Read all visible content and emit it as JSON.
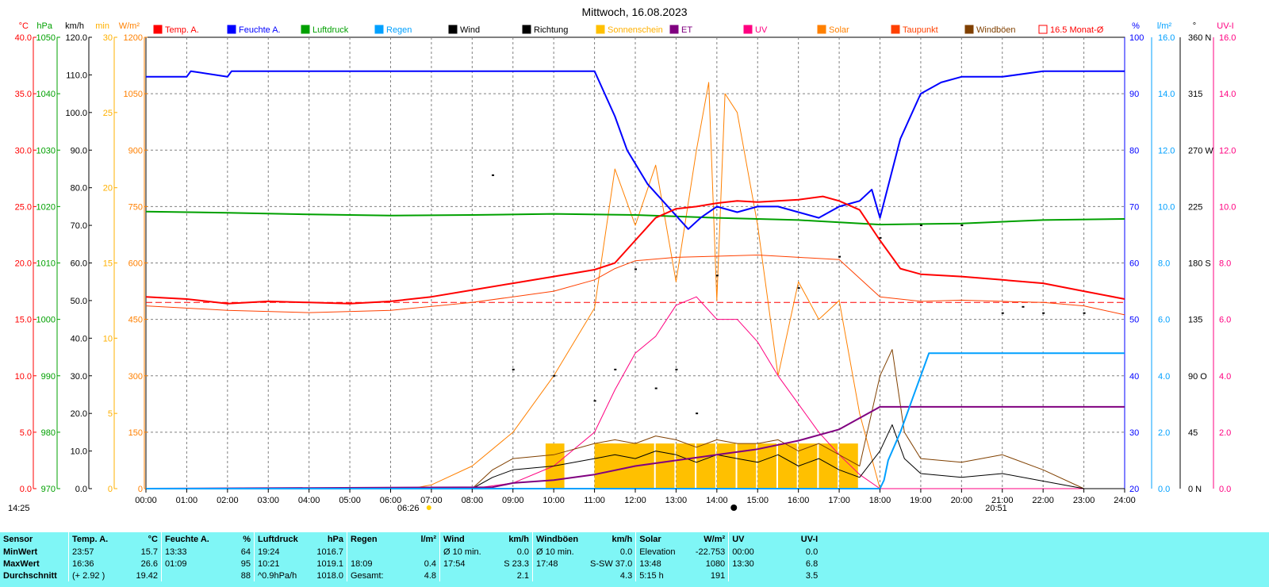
{
  "title": "Mittwoch, 16.08.2023",
  "chart_data": {
    "type": "line",
    "title": "Mittwoch, 16.08.2023",
    "x_ticks": [
      "00:00",
      "01:00",
      "02:00",
      "03:00",
      "04:00",
      "05:00",
      "06:00",
      "07:00",
      "08:00",
      "09:00",
      "10:00",
      "11:00",
      "12:00",
      "13:00",
      "14:00",
      "15:00",
      "16:00",
      "17:00",
      "18:00",
      "19:00",
      "20:00",
      "21:00",
      "22:00",
      "23:00",
      "24:00"
    ],
    "sunrise": "06:26",
    "sunset": "20:51",
    "moon_time": "14:25",
    "left_axes": [
      {
        "unit": "°C",
        "color": "#ff0000",
        "ticks": [
          "0.0",
          "5.0",
          "10.0",
          "15.0",
          "20.0",
          "25.0",
          "30.0",
          "35.0",
          "40.0"
        ]
      },
      {
        "unit": "hPa",
        "color": "#00a000",
        "ticks": [
          "970",
          "980",
          "990",
          "1000",
          "1010",
          "1020",
          "1030",
          "1040",
          "1050"
        ]
      },
      {
        "unit": "km/h",
        "color": "#000000",
        "ticks": [
          "0.0",
          "10.0",
          "20.0",
          "30.0",
          "40.0",
          "50.0",
          "60.0",
          "70.0",
          "80.0",
          "90.0",
          "100.0",
          "110.0",
          "120.0"
        ]
      },
      {
        "unit": "min",
        "color": "#ffb000",
        "ticks": [
          "0",
          "5",
          "10",
          "15",
          "20",
          "25",
          "30"
        ]
      },
      {
        "unit": "W/m²",
        "color": "#ff8000",
        "ticks": [
          "0",
          "150",
          "300",
          "450",
          "600",
          "750",
          "900",
          "1050",
          "1200"
        ]
      }
    ],
    "right_axes": [
      {
        "unit": "%",
        "color": "#0000ff",
        "ticks": [
          "20",
          "30",
          "40",
          "50",
          "60",
          "70",
          "80",
          "90",
          "100"
        ]
      },
      {
        "unit": "l/m²",
        "color": "#00a0ff",
        "ticks": [
          "0.0",
          "2.0",
          "4.0",
          "6.0",
          "8.0",
          "10.0",
          "12.0",
          "14.0",
          "16.0"
        ]
      },
      {
        "unit": "°",
        "color": "#000000",
        "ticks": [
          "0 N",
          "45",
          "90 O",
          "135",
          "180 S",
          "225",
          "270 W",
          "315",
          "360 N"
        ]
      },
      {
        "unit": "UV-I",
        "color": "#ff0080",
        "ticks": [
          "0.0",
          "2.0",
          "4.0",
          "6.0",
          "8.0",
          "10.0",
          "12.0",
          "14.0",
          "16.0"
        ]
      }
    ],
    "legend": [
      {
        "label": "Temp. A.",
        "color": "#ff0000"
      },
      {
        "label": "Feuchte A.",
        "color": "#0000ff"
      },
      {
        "label": "Luftdruck",
        "color": "#00a000"
      },
      {
        "label": "Regen",
        "color": "#00a0ff"
      },
      {
        "label": "Wind",
        "color": "#000000"
      },
      {
        "label": "Richtung",
        "color": "#000000"
      },
      {
        "label": "Sonnenschein",
        "color": "#ffc000"
      },
      {
        "label": "ET",
        "color": "#800080"
      },
      {
        "label": "UV",
        "color": "#ff0080"
      },
      {
        "label": "Solar",
        "color": "#ff8000"
      },
      {
        "label": "Taupunkt",
        "color": "#ff4000"
      },
      {
        "label": "Windböen",
        "color": "#804000"
      },
      {
        "label": "16.5 Monat-Ø",
        "color": "#ff0000"
      }
    ],
    "monthly_avg_temp": 16.5,
    "series": [
      {
        "name": "Temp. A.",
        "unit": "°C",
        "x": [
          0,
          1,
          2,
          3,
          4,
          5,
          6,
          7,
          8,
          9,
          10,
          11,
          11.5,
          12,
          12.5,
          13,
          13.5,
          14,
          14.5,
          15,
          16,
          16.6,
          17,
          17.5,
          18,
          18.5,
          19,
          20,
          21,
          22,
          23,
          24
        ],
        "values": [
          17.0,
          16.8,
          16.4,
          16.6,
          16.5,
          16.4,
          16.6,
          17.0,
          17.6,
          18.2,
          18.8,
          19.4,
          20.0,
          22.0,
          24.0,
          24.8,
          25.0,
          25.3,
          25.5,
          25.4,
          25.6,
          25.9,
          25.5,
          24.7,
          22.0,
          19.5,
          19.0,
          18.8,
          18.5,
          18.2,
          17.5,
          16.8
        ]
      },
      {
        "name": "Feuchte A.",
        "unit": "%",
        "x": [
          0,
          1,
          1.1,
          2,
          2.1,
          2.5,
          3,
          10,
          11,
          11.5,
          11.8,
          12.3,
          12.8,
          13.3,
          13.6,
          14,
          14.5,
          15,
          15.5,
          16,
          16.5,
          17,
          17.5,
          17.8,
          18,
          18.5,
          19,
          19.5,
          20,
          21,
          22,
          23,
          24
        ],
        "values": [
          93,
          93,
          94,
          93,
          94,
          94,
          94,
          94,
          94,
          86,
          80,
          74,
          70,
          66,
          68,
          70,
          69,
          70,
          70,
          69,
          68,
          70,
          71,
          73,
          68,
          82,
          90,
          92,
          93,
          93,
          94,
          94,
          94
        ]
      },
      {
        "name": "Luftdruck",
        "unit": "hPa",
        "x": [
          0,
          2,
          4,
          6,
          8,
          10,
          12,
          14,
          16,
          18,
          20,
          22,
          24
        ],
        "values": [
          1019.1,
          1018.9,
          1018.6,
          1018.4,
          1018.5,
          1018.7,
          1018.5,
          1018.0,
          1017.6,
          1016.8,
          1017.0,
          1017.6,
          1017.8
        ]
      },
      {
        "name": "Regen",
        "unit": "l/m²",
        "x": [
          0,
          18.0,
          18.1,
          18.2,
          18.5,
          18.8,
          19.0,
          19.1,
          19.2,
          24
        ],
        "values": [
          0,
          0,
          0.3,
          1.0,
          2.0,
          3.2,
          4.0,
          4.4,
          4.8,
          4.8
        ]
      },
      {
        "name": "ET",
        "unit": "l/m²",
        "x": [
          0,
          8.5,
          9,
          10,
          11,
          12,
          13,
          14,
          15,
          16,
          17,
          18,
          24
        ],
        "values": [
          0,
          0.05,
          0.2,
          0.3,
          0.5,
          0.8,
          1.0,
          1.2,
          1.4,
          1.7,
          2.1,
          2.9,
          2.9
        ]
      },
      {
        "name": "UV",
        "unit": "UV-I",
        "x": [
          0,
          8,
          9,
          10,
          11,
          11.5,
          12,
          12.5,
          13,
          13.5,
          14,
          14.5,
          15,
          15.5,
          16,
          16.5,
          17,
          17.5,
          18,
          24
        ],
        "values": [
          0,
          0,
          0.2,
          0.8,
          2.0,
          3.5,
          4.8,
          5.4,
          6.5,
          6.8,
          6.0,
          6.0,
          5.2,
          4.0,
          3.0,
          2.0,
          1.2,
          0.5,
          0,
          0
        ]
      },
      {
        "name": "Solar",
        "unit": "W/m²",
        "x": [
          0,
          6.5,
          7,
          8,
          9,
          10,
          11,
          11.5,
          12,
          12.5,
          13,
          13.5,
          13.8,
          14,
          14.2,
          14.5,
          15,
          15.5,
          16,
          16.5,
          17,
          17.5,
          18,
          19,
          24
        ],
        "values": [
          0,
          0,
          10,
          60,
          150,
          300,
          480,
          850,
          700,
          860,
          550,
          900,
          1080,
          500,
          1050,
          1000,
          700,
          300,
          550,
          450,
          500,
          200,
          0,
          0,
          0
        ]
      },
      {
        "name": "Taupunkt",
        "unit": "°C",
        "x": [
          0,
          2,
          4,
          6,
          8,
          10,
          11,
          11.5,
          12,
          13,
          14,
          15,
          16,
          17,
          18,
          19,
          20,
          21,
          22,
          23,
          24
        ],
        "values": [
          16.2,
          15.8,
          15.6,
          15.8,
          16.5,
          17.5,
          18.5,
          19.5,
          20.2,
          20.5,
          20.6,
          20.7,
          20.5,
          20.3,
          17.0,
          16.6,
          16.7,
          16.6,
          16.5,
          16.2,
          15.4
        ]
      },
      {
        "name": "Wind",
        "unit": "km/h",
        "x": [
          0,
          8,
          8.5,
          9,
          10,
          11,
          11.5,
          12,
          12.5,
          13,
          13.5,
          14,
          14.5,
          15,
          15.5,
          16,
          16.5,
          17,
          17.5,
          18,
          18.3,
          18.6,
          19,
          20,
          21,
          22,
          23,
          24
        ],
        "values": [
          0,
          0,
          3,
          5,
          6,
          8,
          9,
          8,
          10,
          9,
          7,
          9,
          8,
          7,
          9,
          6,
          8,
          5,
          3,
          10,
          17,
          8,
          4,
          3,
          4,
          2,
          0,
          0
        ]
      },
      {
        "name": "Windböen",
        "unit": "km/h",
        "x": [
          0,
          8,
          8.5,
          9,
          10,
          11,
          11.5,
          12,
          12.5,
          13,
          13.5,
          14,
          14.5,
          15,
          15.5,
          16,
          16.5,
          17,
          17.5,
          18,
          18.3,
          18.6,
          19,
          20,
          21,
          22,
          23,
          24
        ],
        "values": [
          0,
          0,
          5,
          8,
          9,
          12,
          13,
          12,
          14,
          13,
          11,
          13,
          12,
          12,
          13,
          10,
          12,
          9,
          6,
          30,
          37,
          15,
          8,
          7,
          9,
          5,
          0,
          0
        ]
      },
      {
        "name": "Richtung",
        "unit": "°",
        "x": [
          8.5,
          9,
          10,
          11,
          11.5,
          12,
          12.5,
          13,
          13.5,
          14,
          15,
          16,
          17,
          18,
          19,
          20,
          21,
          21.5,
          22,
          23
        ],
        "values": [
          250,
          95,
          90,
          70,
          95,
          175,
          80,
          95,
          60,
          170,
          225,
          160,
          185,
          200,
          210,
          210,
          140,
          145,
          140,
          140
        ]
      },
      {
        "name": "Sonnenschein",
        "unit": "min",
        "x": [
          9.8,
          11,
          11.3,
          11.7,
          12,
          12.5,
          13,
          13.5,
          14,
          14.5,
          15,
          15.5,
          16,
          16.5,
          17
        ],
        "values": [
          3,
          3,
          3,
          3,
          3,
          3,
          3,
          3,
          3,
          3,
          3,
          3,
          3,
          3,
          3
        ]
      }
    ]
  },
  "summary": {
    "headers": [
      {
        "name": "Sensor",
        "unit": ""
      },
      {
        "name": "Temp. A.",
        "unit": "°C"
      },
      {
        "name": "Feuchte A.",
        "unit": "%"
      },
      {
        "name": "Luftdruck",
        "unit": "hPa"
      },
      {
        "name": "Regen",
        "unit": "l/m²"
      },
      {
        "name": "Wind",
        "unit": "km/h"
      },
      {
        "name": "Windböen",
        "unit": "km/h"
      },
      {
        "name": "Solar",
        "unit": "W/m²"
      },
      {
        "name": "UV",
        "unit": "UV-I"
      }
    ],
    "rows": [
      {
        "label": "MinWert",
        "cells": [
          [
            "23:57",
            "15.7"
          ],
          [
            "13:33",
            "64"
          ],
          [
            "19:24",
            "1016.7"
          ],
          [
            "",
            ""
          ],
          [
            "Ø 10 min.",
            "0.0"
          ],
          [
            "Ø 10 min.",
            "0.0"
          ],
          [
            "Elevation",
            "-22.753"
          ],
          [
            "00:00",
            "0.0"
          ]
        ]
      },
      {
        "label": "MaxWert",
        "cells": [
          [
            "16:36",
            "26.6"
          ],
          [
            "01:09",
            "95"
          ],
          [
            "10:21",
            "1019.1"
          ],
          [
            "18:09",
            "0.4"
          ],
          [
            "17:54",
            "S 23.3"
          ],
          [
            "17:48",
            "S-SW 37.0"
          ],
          [
            "13:48",
            "1080"
          ],
          [
            "13:30",
            "6.8"
          ]
        ]
      },
      {
        "label": "Durchschnitt",
        "cells": [
          [
            "(+ 2.92 )",
            "19.42"
          ],
          [
            "",
            "88"
          ],
          [
            "^0.9hPa/h",
            "1018.0"
          ],
          [
            "Gesamt:",
            "4.8"
          ],
          [
            "",
            "2.1"
          ],
          [
            "",
            "4.3"
          ],
          [
            "5:15 h",
            "191"
          ],
          [
            "",
            "3.5"
          ]
        ]
      }
    ]
  }
}
